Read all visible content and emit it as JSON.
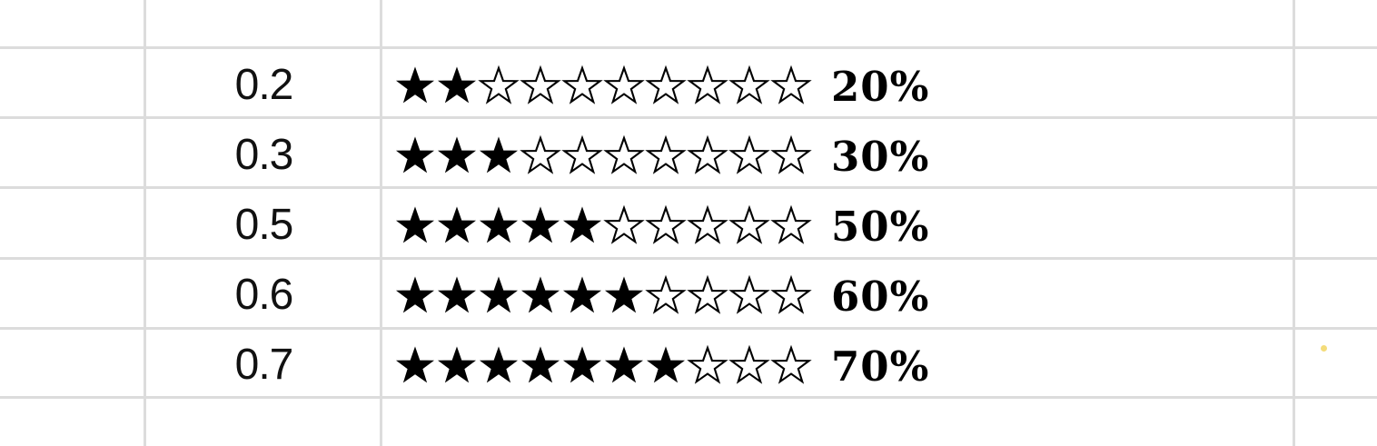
{
  "sheet": {
    "rows": [
      {
        "value": "0.2",
        "rating": 0.2,
        "filled": 2,
        "total": 10,
        "percent": "20%"
      },
      {
        "value": "0.3",
        "rating": 0.3,
        "filled": 3,
        "total": 10,
        "percent": "30%"
      },
      {
        "value": "0.5",
        "rating": 0.5,
        "filled": 5,
        "total": 10,
        "percent": "50%"
      },
      {
        "value": "0.6",
        "rating": 0.6,
        "filled": 6,
        "total": 10,
        "percent": "60%"
      },
      {
        "value": "0.7",
        "rating": 0.7,
        "filled": 7,
        "total": 10,
        "percent": "70%"
      }
    ]
  },
  "icons": {
    "filled": "star-filled-icon",
    "empty": "star-outline-icon"
  },
  "colors": {
    "grid": "#dcdcdc",
    "text": "#111111",
    "star": "#000000"
  }
}
